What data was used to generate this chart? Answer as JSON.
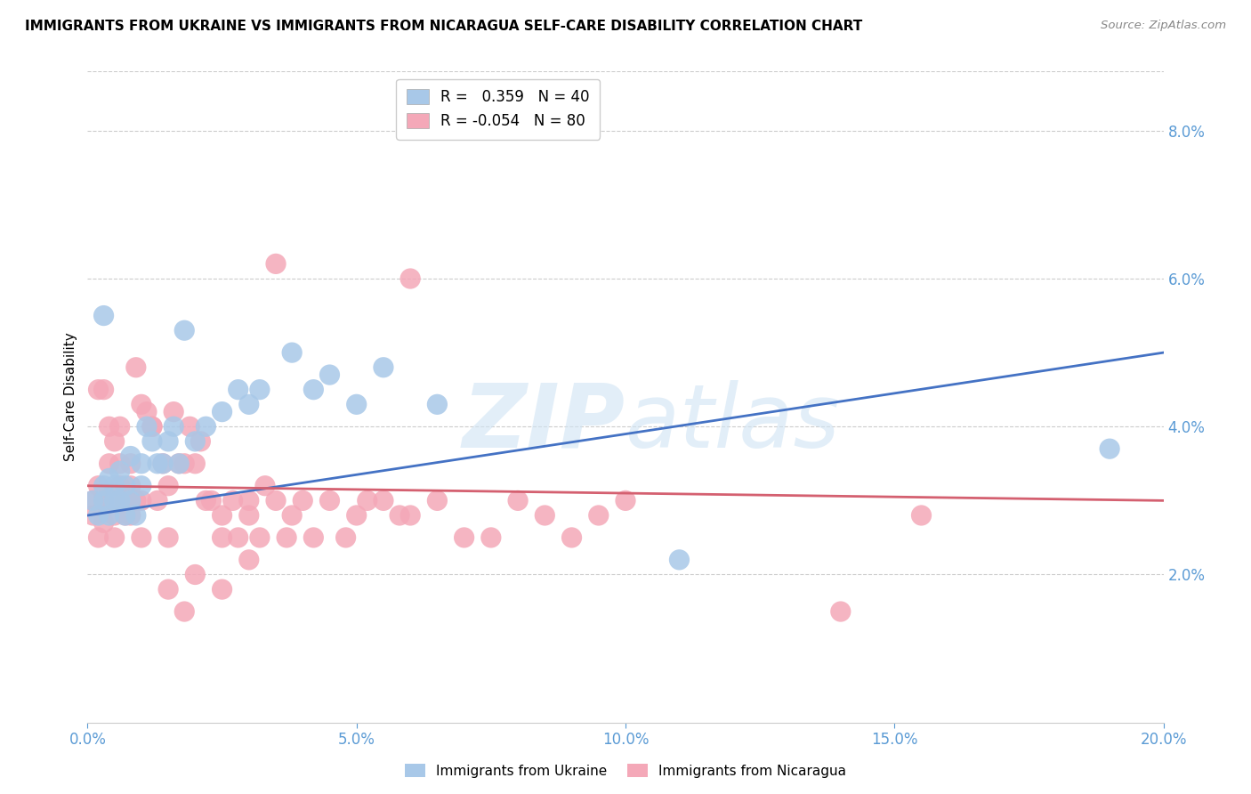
{
  "title": "IMMIGRANTS FROM UKRAINE VS IMMIGRANTS FROM NICARAGUA SELF-CARE DISABILITY CORRELATION CHART",
  "source": "Source: ZipAtlas.com",
  "ylabel": "Self-Care Disability",
  "xlim": [
    0.0,
    0.2
  ],
  "ylim": [
    0.0,
    0.088
  ],
  "yticks": [
    0.02,
    0.04,
    0.06,
    0.08
  ],
  "xticks": [
    0.0,
    0.05,
    0.1,
    0.15,
    0.2
  ],
  "ukraine_color": "#a8c8e8",
  "ukraine_line_color": "#4472c4",
  "nicaragua_color": "#f4a8b8",
  "nicaragua_line_color": "#d4607080",
  "ukraine_points_x": [
    0.001,
    0.002,
    0.003,
    0.003,
    0.004,
    0.004,
    0.005,
    0.005,
    0.006,
    0.006,
    0.007,
    0.007,
    0.008,
    0.008,
    0.009,
    0.01,
    0.01,
    0.011,
    0.012,
    0.013,
    0.014,
    0.015,
    0.016,
    0.017,
    0.018,
    0.02,
    0.022,
    0.025,
    0.028,
    0.03,
    0.032,
    0.038,
    0.042,
    0.045,
    0.05,
    0.055,
    0.065,
    0.11,
    0.19,
    0.003
  ],
  "ukraine_points_y": [
    0.03,
    0.028,
    0.032,
    0.03,
    0.033,
    0.028,
    0.032,
    0.03,
    0.034,
    0.03,
    0.032,
    0.028,
    0.036,
    0.03,
    0.028,
    0.035,
    0.032,
    0.04,
    0.038,
    0.035,
    0.035,
    0.038,
    0.04,
    0.035,
    0.053,
    0.038,
    0.04,
    0.042,
    0.045,
    0.043,
    0.045,
    0.05,
    0.045,
    0.047,
    0.043,
    0.048,
    0.043,
    0.022,
    0.037,
    0.055
  ],
  "nicaragua_points_x": [
    0.001,
    0.001,
    0.002,
    0.002,
    0.003,
    0.003,
    0.004,
    0.004,
    0.005,
    0.005,
    0.006,
    0.006,
    0.007,
    0.007,
    0.008,
    0.008,
    0.009,
    0.01,
    0.01,
    0.011,
    0.012,
    0.013,
    0.014,
    0.015,
    0.015,
    0.016,
    0.017,
    0.018,
    0.019,
    0.02,
    0.021,
    0.022,
    0.023,
    0.025,
    0.025,
    0.027,
    0.028,
    0.03,
    0.03,
    0.032,
    0.033,
    0.035,
    0.037,
    0.038,
    0.04,
    0.042,
    0.045,
    0.048,
    0.05,
    0.052,
    0.055,
    0.058,
    0.06,
    0.065,
    0.07,
    0.075,
    0.08,
    0.085,
    0.09,
    0.095,
    0.002,
    0.003,
    0.004,
    0.005,
    0.006,
    0.007,
    0.008,
    0.009,
    0.01,
    0.012,
    0.015,
    0.018,
    0.02,
    0.025,
    0.03,
    0.035,
    0.1,
    0.14,
    0.155,
    0.06
  ],
  "nicaragua_points_y": [
    0.03,
    0.028,
    0.032,
    0.025,
    0.03,
    0.027,
    0.035,
    0.03,
    0.028,
    0.025,
    0.032,
    0.04,
    0.03,
    0.028,
    0.035,
    0.032,
    0.03,
    0.03,
    0.025,
    0.042,
    0.04,
    0.03,
    0.035,
    0.032,
    0.025,
    0.042,
    0.035,
    0.035,
    0.04,
    0.035,
    0.038,
    0.03,
    0.03,
    0.028,
    0.025,
    0.03,
    0.025,
    0.028,
    0.03,
    0.025,
    0.032,
    0.03,
    0.025,
    0.028,
    0.03,
    0.025,
    0.03,
    0.025,
    0.028,
    0.03,
    0.03,
    0.028,
    0.028,
    0.03,
    0.025,
    0.025,
    0.03,
    0.028,
    0.025,
    0.028,
    0.045,
    0.045,
    0.04,
    0.038,
    0.035,
    0.03,
    0.028,
    0.048,
    0.043,
    0.04,
    0.018,
    0.015,
    0.02,
    0.018,
    0.022,
    0.062,
    0.03,
    0.015,
    0.028,
    0.06
  ],
  "ukraine_line_x0": 0.0,
  "ukraine_line_y0": 0.028,
  "ukraine_line_x1": 0.2,
  "ukraine_line_y1": 0.05,
  "nicaragua_line_x0": 0.0,
  "nicaragua_line_y0": 0.032,
  "nicaragua_line_x1": 0.2,
  "nicaragua_line_y1": 0.03
}
